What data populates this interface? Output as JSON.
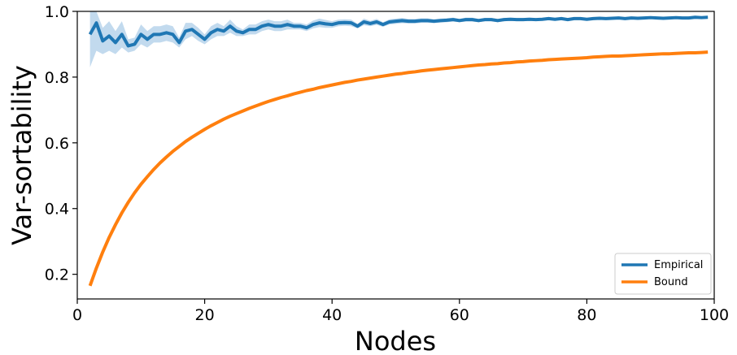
{
  "chart_data": {
    "type": "line",
    "title": "",
    "xlabel": "Nodes",
    "ylabel": "Var-sortability",
    "xlim": [
      0,
      100
    ],
    "ylim": [
      0.125,
      1.0
    ],
    "xticks": [
      0,
      20,
      40,
      60,
      80,
      100
    ],
    "yticks": [
      0.2,
      0.4,
      0.6,
      0.8,
      1.0
    ],
    "grid": false,
    "legend_position": "lower-right",
    "colors": {
      "empirical": "#1f77b4",
      "band": "#aecde8",
      "bound": "#ff7f0e"
    },
    "series": [
      {
        "name": "Empirical",
        "x_start": 2,
        "x_step": 1,
        "values": [
          0.93,
          0.965,
          0.91,
          0.925,
          0.905,
          0.93,
          0.895,
          0.9,
          0.93,
          0.915,
          0.93,
          0.93,
          0.935,
          0.93,
          0.905,
          0.94,
          0.945,
          0.93,
          0.915,
          0.935,
          0.945,
          0.94,
          0.955,
          0.94,
          0.935,
          0.945,
          0.945,
          0.955,
          0.96,
          0.955,
          0.955,
          0.96,
          0.955,
          0.955,
          0.95,
          0.96,
          0.965,
          0.962,
          0.96,
          0.965,
          0.966,
          0.965,
          0.955,
          0.968,
          0.963,
          0.968,
          0.96,
          0.968,
          0.97,
          0.972,
          0.97,
          0.97,
          0.972,
          0.972,
          0.97,
          0.972,
          0.973,
          0.975,
          0.972,
          0.975,
          0.975,
          0.972,
          0.975,
          0.975,
          0.972,
          0.975,
          0.976,
          0.975,
          0.975,
          0.976,
          0.975,
          0.976,
          0.978,
          0.976,
          0.978,
          0.975,
          0.978,
          0.978,
          0.976,
          0.978,
          0.979,
          0.978,
          0.979,
          0.98,
          0.978,
          0.98,
          0.979,
          0.98,
          0.981,
          0.98,
          0.979,
          0.98,
          0.981,
          0.98,
          0.98,
          0.982,
          0.981,
          0.982
        ],
        "lower": [
          0.83,
          0.88,
          0.87,
          0.88,
          0.87,
          0.89,
          0.875,
          0.88,
          0.9,
          0.89,
          0.905,
          0.905,
          0.91,
          0.905,
          0.89,
          0.915,
          0.925,
          0.91,
          0.9,
          0.915,
          0.925,
          0.925,
          0.935,
          0.925,
          0.925,
          0.93,
          0.93,
          0.94,
          0.945,
          0.94,
          0.94,
          0.945,
          0.945,
          0.945,
          0.94,
          0.948,
          0.952,
          0.95,
          0.95,
          0.955,
          0.956,
          0.955,
          0.948,
          0.958,
          0.955,
          0.959,
          0.953,
          0.96,
          0.962,
          0.964,
          0.963,
          0.963,
          0.965,
          0.965,
          0.964,
          0.966,
          0.967,
          0.969,
          0.967,
          0.969,
          0.969,
          0.967,
          0.97,
          0.97,
          0.967,
          0.97,
          0.971,
          0.97,
          0.97,
          0.971,
          0.971,
          0.972,
          0.973,
          0.972,
          0.974,
          0.971,
          0.974,
          0.974,
          0.972,
          0.974,
          0.975,
          0.974,
          0.975,
          0.976,
          0.974,
          0.976,
          0.975,
          0.976,
          0.977,
          0.976,
          0.975,
          0.976,
          0.977,
          0.977,
          0.977,
          0.978,
          0.977,
          0.978
        ],
        "upper": [
          1.0,
          1.0,
          0.95,
          0.97,
          0.94,
          0.97,
          0.915,
          0.92,
          0.96,
          0.94,
          0.955,
          0.955,
          0.96,
          0.955,
          0.92,
          0.965,
          0.965,
          0.95,
          0.93,
          0.955,
          0.965,
          0.955,
          0.975,
          0.955,
          0.945,
          0.96,
          0.96,
          0.97,
          0.975,
          0.97,
          0.97,
          0.975,
          0.965,
          0.965,
          0.96,
          0.972,
          0.978,
          0.974,
          0.97,
          0.975,
          0.976,
          0.975,
          0.962,
          0.978,
          0.971,
          0.977,
          0.967,
          0.976,
          0.978,
          0.98,
          0.977,
          0.977,
          0.979,
          0.979,
          0.976,
          0.978,
          0.979,
          0.981,
          0.977,
          0.981,
          0.981,
          0.977,
          0.98,
          0.98,
          0.977,
          0.98,
          0.981,
          0.98,
          0.98,
          0.981,
          0.979,
          0.98,
          0.983,
          0.98,
          0.982,
          0.979,
          0.982,
          0.982,
          0.98,
          0.982,
          0.983,
          0.982,
          0.983,
          0.984,
          0.982,
          0.984,
          0.983,
          0.984,
          0.985,
          0.984,
          0.983,
          0.984,
          0.985,
          0.983,
          0.983,
          0.986,
          0.985,
          0.986
        ]
      },
      {
        "name": "Bound",
        "x_start": 2,
        "x_step": 1,
        "values": [
          0.165,
          0.219,
          0.268,
          0.312,
          0.351,
          0.387,
          0.419,
          0.448,
          0.474,
          0.497,
          0.519,
          0.539,
          0.557,
          0.574,
          0.589,
          0.604,
          0.617,
          0.629,
          0.641,
          0.652,
          0.662,
          0.672,
          0.681,
          0.689,
          0.697,
          0.705,
          0.712,
          0.719,
          0.726,
          0.732,
          0.738,
          0.743,
          0.749,
          0.754,
          0.759,
          0.763,
          0.768,
          0.772,
          0.776,
          0.78,
          0.784,
          0.787,
          0.791,
          0.794,
          0.797,
          0.8,
          0.803,
          0.806,
          0.809,
          0.811,
          0.814,
          0.816,
          0.819,
          0.821,
          0.823,
          0.825,
          0.827,
          0.829,
          0.831,
          0.833,
          0.835,
          0.837,
          0.838,
          0.84,
          0.841,
          0.843,
          0.844,
          0.846,
          0.847,
          0.849,
          0.85,
          0.851,
          0.853,
          0.854,
          0.855,
          0.856,
          0.857,
          0.858,
          0.859,
          0.861,
          0.862,
          0.863,
          0.864,
          0.864,
          0.865,
          0.866,
          0.867,
          0.868,
          0.869,
          0.87,
          0.871,
          0.871,
          0.872,
          0.873,
          0.874,
          0.874,
          0.875,
          0.876
        ]
      }
    ]
  }
}
